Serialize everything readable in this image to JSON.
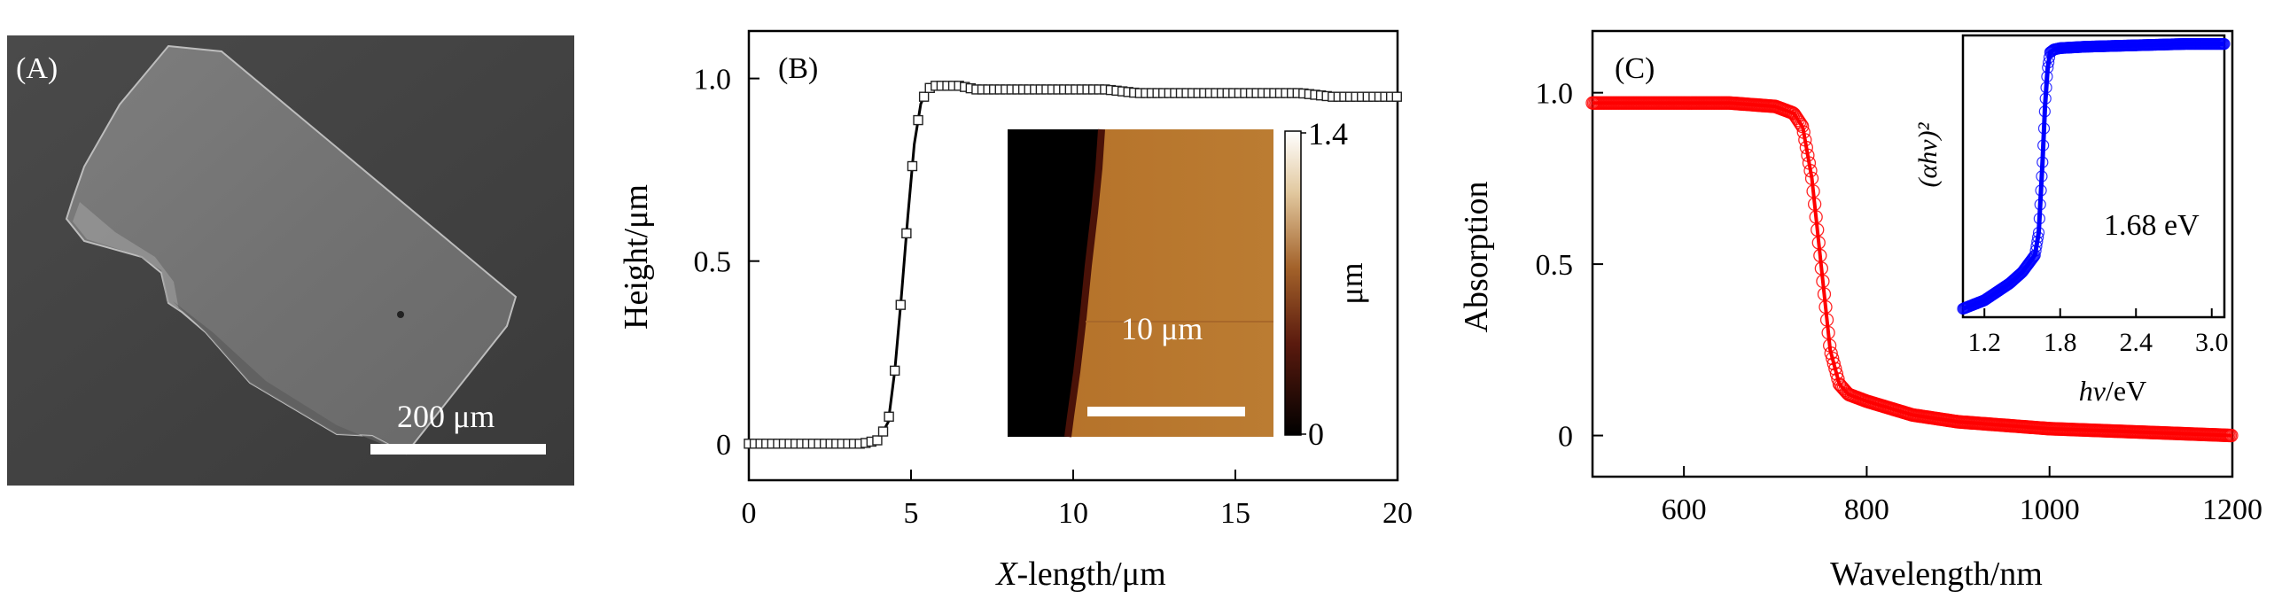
{
  "panelA": {
    "label": "(A)",
    "scalebar_label": "200 μm"
  },
  "panelB": {
    "label": "(B)",
    "inset": {
      "scalebar_label": "10 μm",
      "colorbar": {
        "max_label": "1.4",
        "min_label": "0",
        "unit": "μm"
      }
    }
  },
  "panelC": {
    "label": "(C)",
    "inset": {
      "annotation": "1.68 eV",
      "ylabel": "(αhν)²",
      "xlabel": "hν/eV"
    }
  },
  "colors": {
    "b_marker_edge": "#222222",
    "c_main": "#ff0000",
    "c_inset": "#0000ff",
    "afm_dark": "#2a0a05",
    "afm_bright": "#b7772d"
  },
  "chart_data": [
    {
      "id": "B",
      "type": "line",
      "xlabel": "X-length/μm",
      "ylabel": "Height/μm",
      "xlim": [
        0,
        20
      ],
      "ylim": [
        -0.1,
        1.13
      ],
      "xticks": [
        "0",
        "5",
        "10",
        "15",
        "20"
      ],
      "yticks": [
        "0",
        "0.5",
        "1.0"
      ],
      "series": [
        {
          "x": [
            0,
            0.5,
            1,
            1.5,
            2,
            2.5,
            3,
            3.5,
            4,
            4.3,
            4.5,
            4.7,
            4.9,
            5.1,
            5.3,
            5.5,
            5.7,
            6.0,
            6.5,
            7,
            8,
            9,
            10,
            11,
            12,
            13,
            14,
            15,
            16,
            17,
            18,
            19,
            20
          ],
          "y": [
            0.0,
            0.0,
            0.0,
            0.0,
            0.0,
            0.0,
            0.0,
            0.0,
            0.01,
            0.06,
            0.2,
            0.4,
            0.62,
            0.82,
            0.93,
            0.97,
            0.98,
            0.98,
            0.98,
            0.97,
            0.97,
            0.97,
            0.97,
            0.97,
            0.96,
            0.96,
            0.96,
            0.96,
            0.96,
            0.96,
            0.95,
            0.95,
            0.95
          ]
        }
      ]
    },
    {
      "id": "C",
      "type": "line",
      "xlabel": "Wavelength/nm",
      "ylabel": "Absorption",
      "xlim": [
        500,
        1200
      ],
      "ylim": [
        -0.12,
        1.18
      ],
      "xticks": [
        "600",
        "800",
        "1000",
        "1200"
      ],
      "yticks": [
        "0",
        "0.5",
        "1.0"
      ],
      "series": [
        {
          "x": [
            500,
            550,
            600,
            650,
            700,
            720,
            730,
            740,
            750,
            760,
            770,
            780,
            800,
            850,
            900,
            950,
            1000,
            1050,
            1100,
            1150,
            1200
          ],
          "y": [
            0.97,
            0.97,
            0.97,
            0.97,
            0.96,
            0.94,
            0.9,
            0.75,
            0.5,
            0.25,
            0.15,
            0.12,
            0.1,
            0.06,
            0.04,
            0.03,
            0.02,
            0.015,
            0.01,
            0.005,
            0.0
          ]
        }
      ]
    },
    {
      "id": "C-inset",
      "type": "line",
      "xlabel": "hν/eV",
      "ylabel": "(αhν)²",
      "xlim": [
        1.03,
        3.1
      ],
      "xticks": [
        "1.2",
        "1.8",
        "2.4",
        "3.0"
      ],
      "series": [
        {
          "x": [
            1.03,
            1.2,
            1.4,
            1.5,
            1.55,
            1.6,
            1.63,
            1.66,
            1.68,
            1.7,
            1.72,
            1.75,
            1.8,
            2.0,
            2.4,
            2.8,
            3.1
          ],
          "y": [
            0.03,
            0.06,
            0.12,
            0.16,
            0.19,
            0.22,
            0.3,
            0.55,
            0.75,
            0.88,
            0.94,
            0.95,
            0.955,
            0.96,
            0.965,
            0.97,
            0.97
          ]
        }
      ]
    }
  ]
}
